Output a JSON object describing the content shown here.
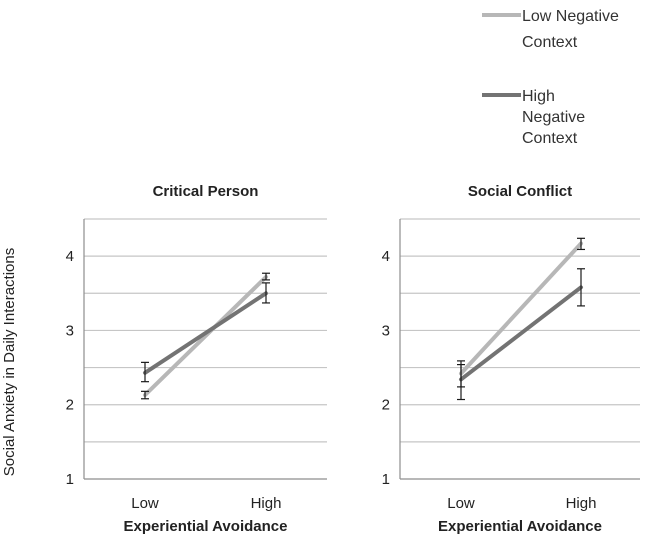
{
  "legend": {
    "items": [
      {
        "lines": [
          "Low Negative",
          "Context"
        ],
        "color": "#b7b7b7"
      },
      {
        "lines": [
          "High",
          "Negative",
          "Context"
        ],
        "color": "#737373"
      }
    ]
  },
  "y_axis_title": "Social Anxiety in Daily Interactions",
  "colors": {
    "low_negative_context": "#b7b7b7",
    "high_negative_context": "#737373",
    "gridline": "#c6c6c6",
    "axis": "#8e8e8e"
  },
  "chart_data": [
    {
      "type": "line",
      "title": "Critical Person",
      "categories": [
        "Low",
        "High"
      ],
      "xlabel": "Experiential Avoidance",
      "ylabel": "Social Anxiety in Daily Interactions",
      "ylim": [
        1,
        4.5
      ],
      "yticks": [
        1,
        2,
        3,
        4
      ],
      "ytick_labels": [
        "1",
        "2",
        "3",
        "4"
      ],
      "grid_values": [
        1.5,
        2,
        2.5,
        3,
        3.5,
        4,
        4.5
      ],
      "grid": true,
      "legend_position": "top-right",
      "series": [
        {
          "name": "Low Negative Context",
          "values": [
            2.13,
            3.72
          ],
          "error": [
            [
              2.08,
              2.18
            ],
            [
              3.68,
              3.77
            ]
          ]
        },
        {
          "name": "High Negative Context",
          "values": [
            2.43,
            3.5
          ],
          "error": [
            [
              2.31,
              2.57
            ],
            [
              3.37,
              3.64
            ]
          ]
        }
      ]
    },
    {
      "type": "line",
      "title": "Social Conflict",
      "categories": [
        "Low",
        "High"
      ],
      "xlabel": "Experiential Avoidance",
      "ylabel": "",
      "ylim": [
        1,
        4.5
      ],
      "yticks": [
        1,
        2,
        3,
        4
      ],
      "ytick_labels": [
        "1",
        "2",
        "3",
        "4"
      ],
      "grid_values": [
        1.5,
        2,
        2.5,
        3,
        3.5,
        4,
        4.5
      ],
      "grid": true,
      "legend_position": "top-right",
      "series": [
        {
          "name": "Low Negative Context",
          "values": [
            2.42,
            4.17
          ],
          "error": [
            [
              2.24,
              2.59
            ],
            [
              4.09,
              4.24
            ]
          ]
        },
        {
          "name": "High Negative Context",
          "values": [
            2.34,
            3.58
          ],
          "error": [
            [
              2.07,
              2.54
            ],
            [
              3.33,
              3.83
            ]
          ]
        }
      ]
    }
  ]
}
